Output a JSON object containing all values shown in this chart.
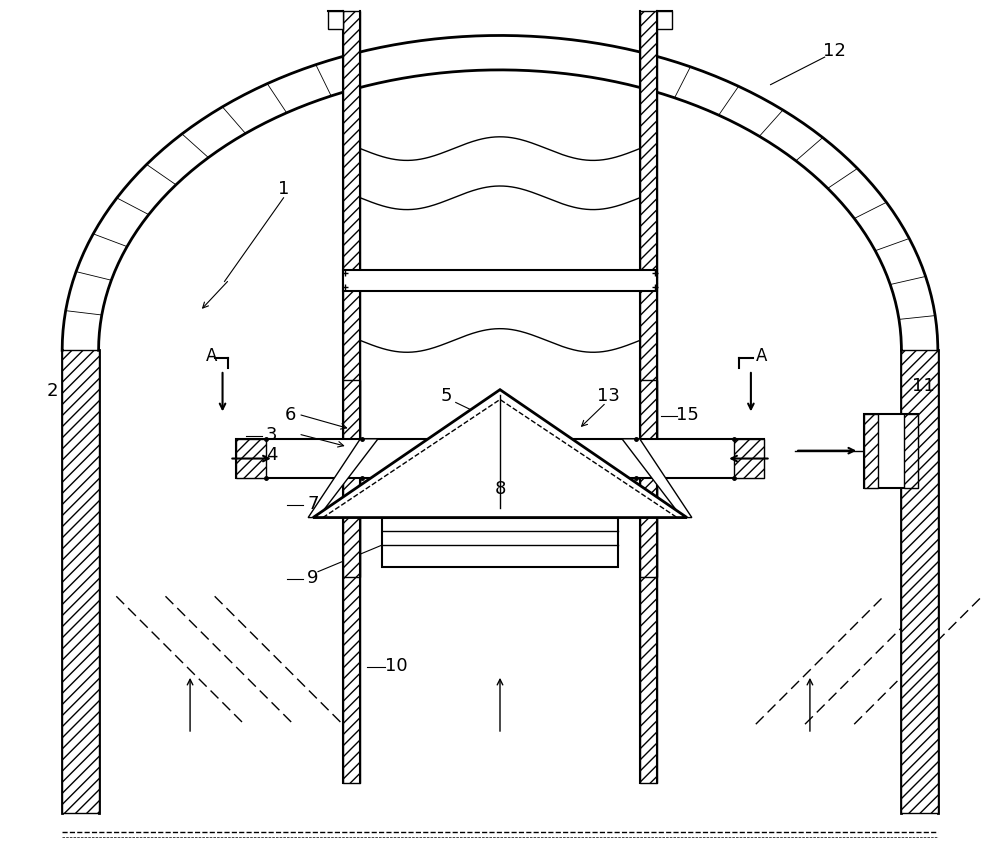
{
  "bg_color": "#ffffff",
  "line_color": "#000000",
  "fig_width": 10.0,
  "fig_height": 8.62,
  "lw_main": 1.5,
  "lw_thin": 1.0,
  "lw_thick": 2.0
}
